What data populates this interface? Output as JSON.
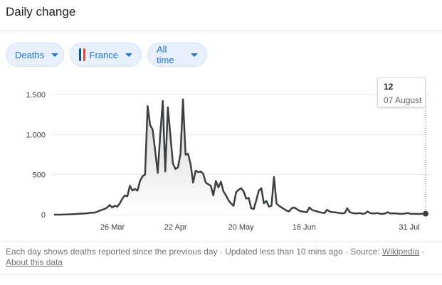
{
  "header": {
    "title": "Daily change"
  },
  "filters": {
    "metric": {
      "label": "Deaths"
    },
    "region": {
      "label": "France",
      "flag_colors": [
        "#0055a4",
        "#ffffff",
        "#ef4135"
      ]
    },
    "range": {
      "label": "All time"
    }
  },
  "tooltip": {
    "value": "12",
    "date": "07 August"
  },
  "footer": {
    "description": "Each day shows deaths reported since the previous day",
    "sep1": " · ",
    "updated": "Updated less than 10 mins ago",
    "sep2": " · ",
    "source_label": "Source:",
    "source_link": "Wikipedia",
    "sep3": " · ",
    "about_link": "About this data"
  },
  "chart_data": {
    "type": "area",
    "title": "",
    "xlabel": "",
    "ylabel": "",
    "x_start": "2020-03-01",
    "x_end": "2020-08-07",
    "x_ticks": [
      {
        "label": "26 Mar",
        "date": "2020-03-26"
      },
      {
        "label": "22 Apr",
        "date": "2020-04-22"
      },
      {
        "label": "20 May",
        "date": "2020-05-20"
      },
      {
        "label": "16 Jun",
        "date": "2020-06-16"
      },
      {
        "label": "31 Jul",
        "date": "2020-07-31"
      }
    ],
    "y_ticks": [
      {
        "label": "0",
        "value": 0
      },
      {
        "label": "500",
        "value": 500
      },
      {
        "label": "1.000",
        "value": 1000
      },
      {
        "label": "1.500",
        "value": 1500
      }
    ],
    "ylim": [
      0,
      1500
    ],
    "grid": true,
    "colors": {
      "line": "#3c4043",
      "fill_top": "#d4d4d4",
      "fill_bottom": "#ffffff",
      "grid": "#e8eaed",
      "marker": "#3c4043"
    },
    "series": [
      {
        "name": "",
        "values": [
          0,
          0,
          0,
          0,
          2,
          3,
          4,
          4,
          7,
          9,
          11,
          13,
          14,
          17,
          21,
          26,
          25,
          35,
          50,
          60,
          70,
          90,
          120,
          90,
          110,
          100,
          140,
          200,
          240,
          230,
          360,
          300,
          320,
          300,
          420,
          480,
          500,
          1355,
          1120,
          1060,
          800,
          520,
          1000,
          1420,
          540,
          1340,
          1000,
          640,
          570,
          590,
          760,
          1440,
          750,
          760,
          630,
          400,
          550,
          530,
          540,
          510,
          400,
          380,
          360,
          240,
          420,
          340,
          410,
          290,
          240,
          180,
          140,
          110,
          280,
          310,
          330,
          290,
          200,
          210,
          80,
          70,
          180,
          300,
          330,
          140,
          170,
          100,
          110,
          470,
          140,
          110,
          90,
          70,
          50,
          40,
          80,
          90,
          70,
          50,
          40,
          35,
          30,
          90,
          60,
          50,
          40,
          30,
          25,
          20,
          60,
          40,
          30,
          30,
          25,
          20,
          15,
          20,
          80,
          30,
          20,
          15,
          15,
          20,
          10,
          15,
          40,
          20,
          15,
          15,
          20,
          10,
          10,
          15,
          30,
          15,
          15,
          15,
          12,
          10,
          10,
          15,
          20,
          10,
          10,
          10,
          8,
          10,
          10,
          12
        ]
      }
    ]
  }
}
